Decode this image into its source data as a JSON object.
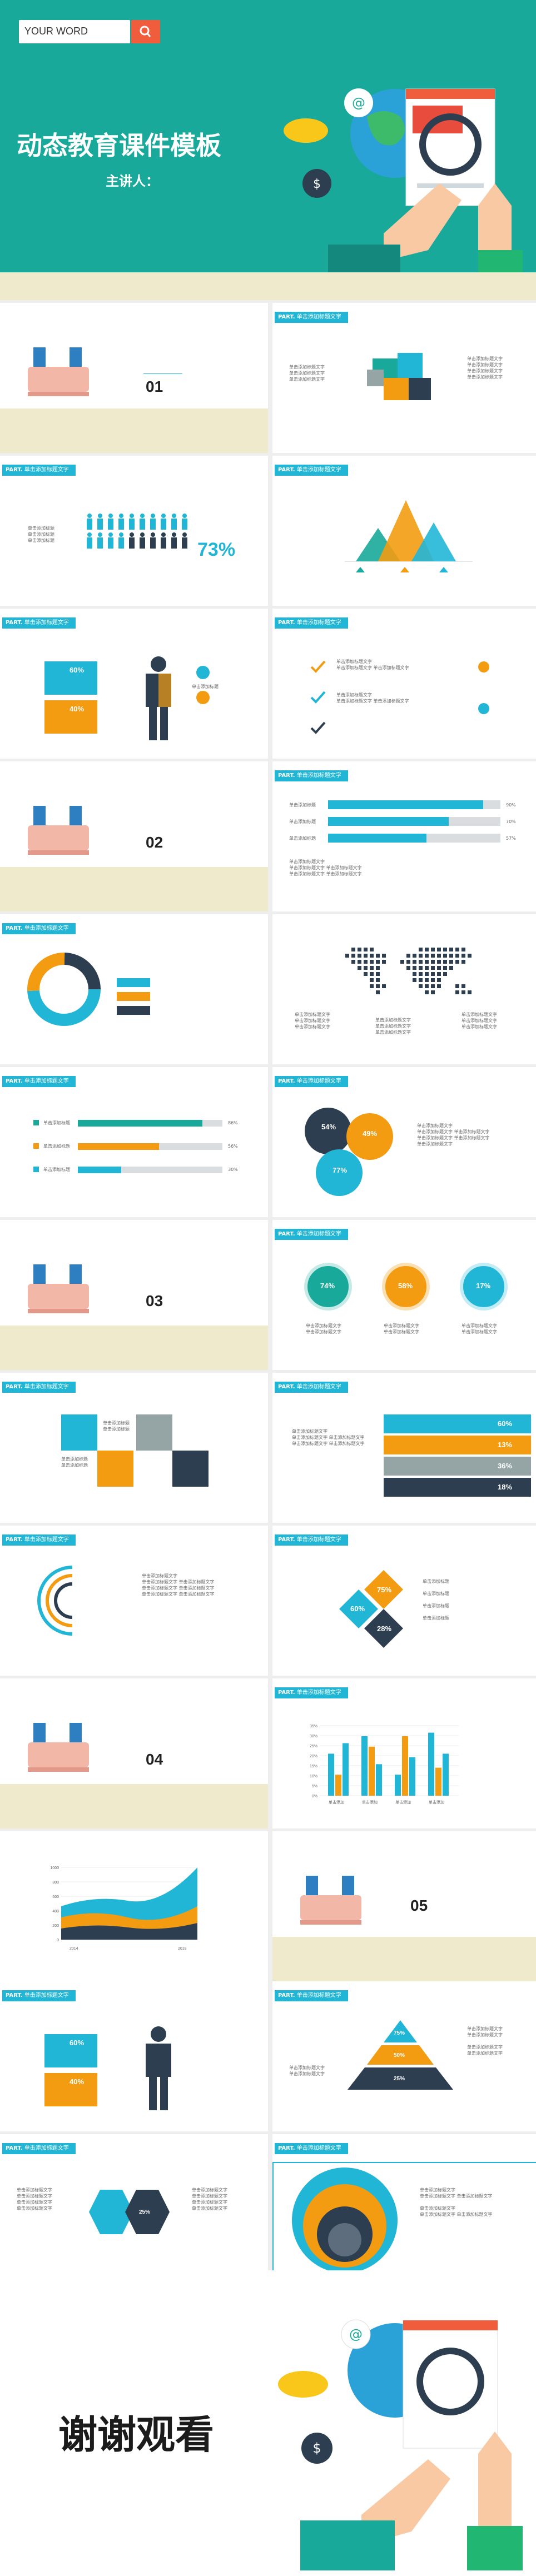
{
  "cover": {
    "search_text": "YOUR WORD",
    "title": "动态教育课件模板",
    "speaker": "主讲人："
  },
  "common": {
    "tag_part": "PART.",
    "tag_title": "单击添加标题文字",
    "small": "单击添加标题",
    "line": "单击添加标题文字"
  },
  "section_numbers": [
    "01",
    "02",
    "03",
    "04",
    "05"
  ],
  "colors": {
    "teal": "#18a99a",
    "cyan": "#22b6d6",
    "orange": "#f39c12",
    "navy": "#2c3e50",
    "cream": "#efeacb",
    "red": "#ef5d3d"
  },
  "people_stat": "73%",
  "half_stats": {
    "a": "60%",
    "b": "40%"
  },
  "hbars": [
    {
      "label": "单击添加标题",
      "value": "90%"
    },
    {
      "label": "单击添加标题",
      "value": "70%"
    },
    {
      "label": "单击添加标题",
      "value": "57%"
    }
  ],
  "circle_stats": [
    "54%",
    "49%",
    "77%"
  ],
  "rings": [
    "74%",
    "58%",
    "17%"
  ],
  "wave_stats": [
    "60%",
    "13%",
    "36%",
    "18%"
  ],
  "diamond_stats": [
    "75%",
    "60%",
    "28%"
  ],
  "mini_bars": [
    "86%",
    "56%",
    "30%"
  ],
  "column_chart": {
    "yticks": [
      "35%",
      "30%",
      "25%",
      "20%",
      "15%",
      "10%",
      "5%",
      "0%"
    ],
    "cats": [
      "单击添加",
      "单击添加",
      "单击添加",
      "单击添加"
    ]
  },
  "area_chart": {
    "yticks": [
      "1000",
      "800",
      "600",
      "400",
      "200",
      "0"
    ],
    "xticks": [
      "2014",
      "2018"
    ]
  },
  "pyramid": [
    "75%",
    "50%",
    "25%"
  ],
  "person_pct": "25%",
  "end": {
    "title": "谢谢观看"
  }
}
